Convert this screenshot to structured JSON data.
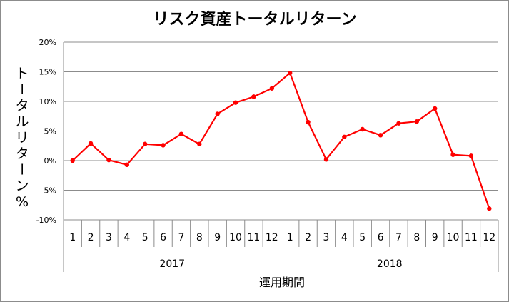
{
  "chart_data": {
    "type": "line",
    "title": "リスク資産トータルリターン",
    "xlabel": "運用期間",
    "ylabel": "トータルリターン%",
    "ylim": [
      -10,
      20
    ],
    "ytick_values": [
      -10,
      -5,
      0,
      5,
      10,
      15,
      20
    ],
    "ytick_labels": [
      "-10%",
      "-5%",
      "0%",
      "5%",
      "10%",
      "15%",
      "20%"
    ],
    "categories": [
      "1",
      "2",
      "3",
      "4",
      "5",
      "6",
      "7",
      "8",
      "9",
      "10",
      "11",
      "12",
      "1",
      "2",
      "3",
      "4",
      "5",
      "6",
      "7",
      "8",
      "9",
      "10",
      "11",
      "12"
    ],
    "groups": [
      {
        "label": "2017",
        "count": 12
      },
      {
        "label": "2018",
        "count": 12
      }
    ],
    "series": [
      {
        "values": [
          0.0,
          2.9,
          0.1,
          -0.7,
          2.8,
          2.6,
          4.5,
          2.8,
          7.9,
          9.8,
          10.8,
          12.2,
          14.8,
          6.5,
          0.2,
          4.0,
          5.3,
          4.3,
          6.3,
          6.6,
          8.8,
          1.0,
          0.8,
          -8.1
        ],
        "color": "#ff0000"
      }
    ],
    "grid": true,
    "legend": "none"
  }
}
